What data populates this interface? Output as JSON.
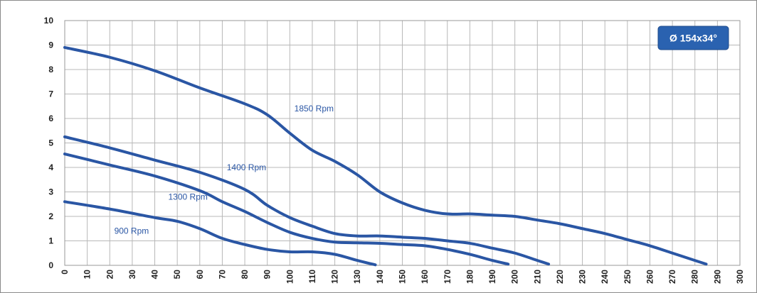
{
  "chart_data": {
    "type": "line",
    "title": "",
    "xlabel": "",
    "ylabel": "",
    "xlim": [
      0,
      300
    ],
    "ylim": [
      0,
      10
    ],
    "x_ticks": [
      0,
      10,
      20,
      30,
      40,
      50,
      60,
      70,
      80,
      90,
      100,
      110,
      120,
      130,
      140,
      150,
      160,
      170,
      180,
      190,
      200,
      210,
      220,
      230,
      240,
      250,
      260,
      270,
      280,
      290,
      300
    ],
    "y_ticks": [
      0,
      1,
      2,
      3,
      4,
      5,
      6,
      7,
      8,
      9,
      10
    ],
    "grid": true,
    "badge": "Ø 154x34°",
    "line_color": "#2a56a4",
    "badge_color": "#2a62b0",
    "series": [
      {
        "name": "1850 Rpm",
        "points": [
          [
            0,
            8.9
          ],
          [
            20,
            8.5
          ],
          [
            40,
            7.95
          ],
          [
            60,
            7.25
          ],
          [
            80,
            6.6
          ],
          [
            90,
            6.15
          ],
          [
            100,
            5.4
          ],
          [
            110,
            4.7
          ],
          [
            120,
            4.25
          ],
          [
            130,
            3.7
          ],
          [
            140,
            3.0
          ],
          [
            150,
            2.55
          ],
          [
            160,
            2.25
          ],
          [
            170,
            2.1
          ],
          [
            180,
            2.1
          ],
          [
            190,
            2.05
          ],
          [
            200,
            2.0
          ],
          [
            210,
            1.85
          ],
          [
            220,
            1.7
          ],
          [
            230,
            1.5
          ],
          [
            240,
            1.3
          ],
          [
            250,
            1.05
          ],
          [
            260,
            0.8
          ],
          [
            270,
            0.5
          ],
          [
            280,
            0.2
          ],
          [
            285,
            0.05
          ]
        ],
        "label_at": [
          102,
          6.4
        ]
      },
      {
        "name": "1400 Rpm",
        "points": [
          [
            0,
            5.25
          ],
          [
            20,
            4.8
          ],
          [
            40,
            4.3
          ],
          [
            60,
            3.8
          ],
          [
            80,
            3.1
          ],
          [
            90,
            2.45
          ],
          [
            100,
            1.95
          ],
          [
            110,
            1.6
          ],
          [
            120,
            1.3
          ],
          [
            130,
            1.2
          ],
          [
            140,
            1.2
          ],
          [
            150,
            1.15
          ],
          [
            160,
            1.1
          ],
          [
            170,
            1.0
          ],
          [
            180,
            0.9
          ],
          [
            190,
            0.7
          ],
          [
            200,
            0.5
          ],
          [
            210,
            0.2
          ],
          [
            215,
            0.05
          ]
        ],
        "label_at": [
          72,
          4.0
        ]
      },
      {
        "name": "1300 Rpm",
        "points": [
          [
            0,
            4.55
          ],
          [
            20,
            4.1
          ],
          [
            40,
            3.65
          ],
          [
            60,
            3.05
          ],
          [
            70,
            2.6
          ],
          [
            80,
            2.2
          ],
          [
            90,
            1.75
          ],
          [
            100,
            1.35
          ],
          [
            110,
            1.1
          ],
          [
            120,
            0.95
          ],
          [
            130,
            0.92
          ],
          [
            140,
            0.9
          ],
          [
            150,
            0.85
          ],
          [
            160,
            0.8
          ],
          [
            170,
            0.65
          ],
          [
            180,
            0.45
          ],
          [
            190,
            0.2
          ],
          [
            197,
            0.05
          ]
        ],
        "label_at": [
          46,
          2.8
        ]
      },
      {
        "name": "900 Rpm",
        "points": [
          [
            0,
            2.6
          ],
          [
            20,
            2.3
          ],
          [
            40,
            1.95
          ],
          [
            50,
            1.8
          ],
          [
            60,
            1.5
          ],
          [
            70,
            1.1
          ],
          [
            80,
            0.85
          ],
          [
            90,
            0.65
          ],
          [
            100,
            0.55
          ],
          [
            110,
            0.55
          ],
          [
            120,
            0.45
          ],
          [
            130,
            0.2
          ],
          [
            138,
            0.02
          ]
        ],
        "label_at": [
          22,
          1.4
        ]
      }
    ]
  }
}
